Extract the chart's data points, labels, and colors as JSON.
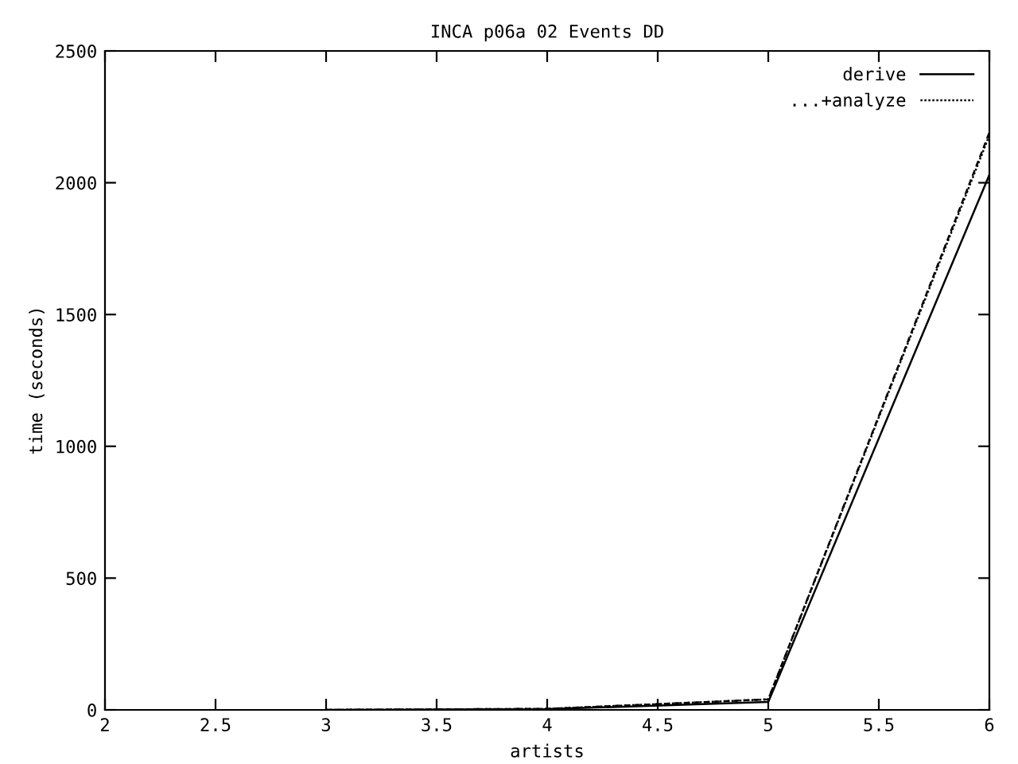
{
  "chart_data": {
    "type": "line",
    "title": "INCA p06a 02 Events DD",
    "xlabel": "artists",
    "ylabel": "time (seconds)",
    "x": [
      3,
      4,
      5,
      6
    ],
    "series": [
      {
        "name": "derive",
        "color": "#000000",
        "line_style": "solid",
        "values": [
          0,
          3,
          30,
          2030
        ]
      },
      {
        "name": "...+analyze",
        "color": "#000000",
        "line_style": "dotted",
        "values": [
          0,
          4,
          40,
          2180
        ]
      },
      {
        "color": "#000000",
        "line_style": "dashed",
        "values": [
          0,
          4,
          40,
          2190
        ]
      }
    ],
    "xlim": [
      2,
      6
    ],
    "xticks": [
      2,
      2.5,
      3,
      3.5,
      4,
      4.5,
      5,
      5.5,
      6
    ],
    "ylim": [
      0,
      2500
    ],
    "yticks": [
      0,
      500,
      1000,
      1500,
      2000,
      2500
    ],
    "legend": "top right",
    "grid": false,
    "marker": "none"
  }
}
